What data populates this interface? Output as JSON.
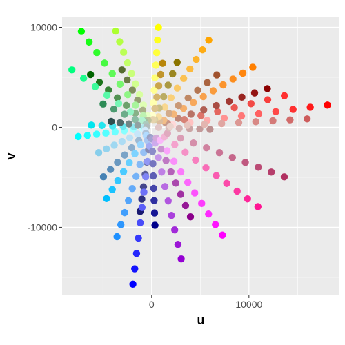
{
  "chart_data": {
    "type": "scatter",
    "title": "",
    "xlabel": "u",
    "ylabel": "v",
    "xlim": [
      -9200,
      19300
    ],
    "ylim": [
      -16800,
      11000
    ],
    "x_ticks": [
      0,
      10000
    ],
    "x_tick_labels": [
      "0",
      "10000"
    ],
    "y_ticks": [
      -10000,
      0,
      10000
    ],
    "y_tick_labels": [
      "-10000",
      "0",
      "10000"
    ],
    "grid": true,
    "background": "#ebebeb",
    "grid_color": "#ffffff",
    "legend": "none",
    "point_rays": [
      {
        "color_from": "#ffffff",
        "color_to": "#ff0000",
        "angle_deg": 7,
        "length": 18200,
        "count": 10
      },
      {
        "color_from": "#c8a090",
        "color_to": "#ff3030",
        "angle_deg": 13,
        "length": 14000,
        "count": 8
      },
      {
        "color_from": "#d2b4a0",
        "color_to": "#8b0000",
        "angle_deg": 18,
        "length": 12500,
        "count": 9
      },
      {
        "color_from": "#f0c8a0",
        "color_to": "#ff7f00",
        "angle_deg": 30,
        "length": 12000,
        "count": 10
      },
      {
        "color_from": "#e8d0b0",
        "color_to": "#a0522d",
        "angle_deg": 38,
        "length": 8500,
        "count": 7
      },
      {
        "color_from": "#f5e8c0",
        "color_to": "#ffa500",
        "angle_deg": 56,
        "length": 10500,
        "count": 9
      },
      {
        "color_from": "#e8e0c0",
        "color_to": "#8b7500",
        "angle_deg": 68,
        "length": 7000,
        "count": 6
      },
      {
        "color_from": "#fffff0",
        "color_to": "#ffff00",
        "angle_deg": 86,
        "length": 10000,
        "count": 8
      },
      {
        "color_from": "#ede0c8",
        "color_to": "#b8860b",
        "angle_deg": 80,
        "length": 6500,
        "count": 6
      },
      {
        "color_from": "#f0ffe0",
        "color_to": "#adff2f",
        "angle_deg": 111,
        "length": 10300,
        "count": 9
      },
      {
        "color_from": "#d0d0b0",
        "color_to": "#556b2f",
        "angle_deg": 118,
        "length": 6500,
        "count": 6
      },
      {
        "color_from": "#e0f0d0",
        "color_to": "#00ff00",
        "angle_deg": 127,
        "length": 12000,
        "count": 9
      },
      {
        "color_from": "#c0d0c0",
        "color_to": "#006400",
        "angle_deg": 140,
        "length": 8200,
        "count": 7
      },
      {
        "color_from": "#d0f0e0",
        "color_to": "#00ff7f",
        "angle_deg": 145,
        "length": 10000,
        "count": 7
      },
      {
        "color_from": "#c0d8d0",
        "color_to": "#2e8b57",
        "angle_deg": 155,
        "length": 5500,
        "count": 5
      },
      {
        "color_from": "#e0ffff",
        "color_to": "#00ffff",
        "angle_deg": 187,
        "length": 7600,
        "count": 8
      },
      {
        "color_from": "#d0e8f0",
        "color_to": "#00e5ee",
        "angle_deg": 178,
        "length": 6200,
        "count": 6
      },
      {
        "color_from": "#c8d0d0",
        "color_to": "#2f4f4f",
        "angle_deg": 172,
        "length": 4200,
        "count": 5
      },
      {
        "color_from": "#e0f0ff",
        "color_to": "#87ceeb",
        "angle_deg": 205,
        "length": 6000,
        "count": 7
      },
      {
        "color_from": "#c0d0e0",
        "color_to": "#4682b4",
        "angle_deg": 225,
        "length": 7000,
        "count": 7
      },
      {
        "color_from": "#d0e0ff",
        "color_to": "#00bfff",
        "angle_deg": 237,
        "length": 8500,
        "count": 8
      },
      {
        "color_from": "#c0d0f0",
        "color_to": "#1e90ff",
        "angle_deg": 252,
        "length": 11500,
        "count": 9
      },
      {
        "color_from": "#b0b8d0",
        "color_to": "#191970",
        "angle_deg": 262,
        "length": 8500,
        "count": 7
      },
      {
        "color_from": "#c0c8f0",
        "color_to": "#0000ff",
        "angle_deg": 263,
        "length": 15800,
        "count": 10
      },
      {
        "color_from": "#c0c0e0",
        "color_to": "#00008b",
        "angle_deg": 272,
        "length": 9800,
        "count": 8
      },
      {
        "color_from": "#d8c8f0",
        "color_to": "#9400d3",
        "angle_deg": 283,
        "length": 13500,
        "count": 9
      },
      {
        "color_from": "#e0c8e8",
        "color_to": "#8b008b",
        "angle_deg": 294,
        "length": 9800,
        "count": 8
      },
      {
        "color_from": "#f8d8f8",
        "color_to": "#ff00ff",
        "angle_deg": 304,
        "length": 13000,
        "count": 10
      },
      {
        "color_from": "#f0d0e0",
        "color_to": "#ff1493",
        "angle_deg": 324,
        "length": 13500,
        "count": 10
      },
      {
        "color_from": "#e8c0d0",
        "color_to": "#b03060",
        "angle_deg": 340,
        "length": 14500,
        "count": 10
      },
      {
        "color_from": "#e8d0d0",
        "color_to": "#bc8f8f",
        "angle_deg": 358,
        "length": 6000,
        "count": 6
      },
      {
        "color_from": "#f0e8e0",
        "color_to": "#cd5c5c",
        "angle_deg": 3,
        "length": 16000,
        "count": 9
      }
    ]
  }
}
